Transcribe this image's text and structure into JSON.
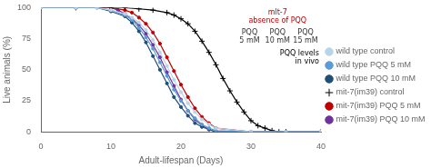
{
  "chart_data": {
    "type": "line",
    "x_label": "Adult-lifespan (Days)",
    "y_label": "Live animals (%)",
    "xlim": [
      0,
      40
    ],
    "ylim": [
      0,
      100
    ],
    "xticks": [
      0,
      10,
      20,
      30,
      40
    ],
    "yticks": [
      0,
      25,
      50,
      75,
      100
    ],
    "grid": false,
    "legend": "right",
    "series": [
      {
        "name": "wild type control",
        "color": "#b8d4e8",
        "marker": "circle",
        "line_style": "solid",
        "x": [
          0,
          5,
          8,
          10,
          12,
          13,
          14,
          15,
          16,
          17,
          18,
          19,
          20,
          21,
          22,
          23,
          24,
          25,
          30,
          35,
          40
        ],
        "values": [
          100,
          100,
          100,
          98,
          95,
          92,
          88,
          82,
          74,
          64,
          53,
          42,
          32,
          23,
          16,
          10,
          6,
          3,
          0,
          0,
          0
        ]
      },
      {
        "name": "wild type PQQ 5 mM",
        "color": "#5b9bd5",
        "marker": "circle",
        "line_style": "solid",
        "x": [
          0,
          5,
          8,
          10,
          12,
          13,
          14,
          15,
          16,
          17,
          18,
          19,
          20,
          21,
          22,
          23,
          24,
          25,
          30,
          35,
          40
        ],
        "values": [
          100,
          100,
          100,
          98,
          94,
          90,
          84,
          76,
          67,
          56,
          45,
          34,
          25,
          17,
          11,
          6,
          3,
          1,
          0,
          0,
          0
        ]
      },
      {
        "name": "wild type PQQ 10 mM",
        "color": "#1f4e79",
        "marker": "circle",
        "line_style": "solid",
        "x": [
          0,
          5,
          8,
          10,
          12,
          13,
          14,
          15,
          16,
          17,
          18,
          19,
          20,
          21,
          22,
          23,
          24,
          25,
          30,
          35,
          40
        ],
        "values": [
          100,
          100,
          100,
          97,
          93,
          88,
          81,
          72,
          61,
          50,
          39,
          28,
          20,
          13,
          7,
          4,
          2,
          0,
          0,
          0,
          0
        ]
      },
      {
        "name": "mit-7(im39) control",
        "color": "#000000",
        "marker": "cross",
        "line_style": "solid",
        "x": [
          0,
          5,
          10,
          12,
          14,
          16,
          18,
          19,
          20,
          21,
          22,
          23,
          24,
          25,
          26,
          27,
          28,
          29,
          30,
          31,
          32,
          33,
          34,
          35,
          40
        ],
        "values": [
          100,
          100,
          100,
          100,
          99,
          98,
          96,
          94,
          91,
          87,
          81,
          73,
          64,
          54,
          43,
          33,
          24,
          16,
          9,
          5,
          3,
          1,
          0,
          0,
          0
        ]
      },
      {
        "name": "mit-7(im39) PQQ 5 mM",
        "color": "#c00000",
        "marker": "circle",
        "line_style": "solid",
        "x": [
          0,
          5,
          10,
          12,
          13,
          14,
          15,
          16,
          17,
          18,
          19,
          20,
          21,
          22,
          23,
          24,
          25,
          30,
          35,
          40
        ],
        "values": [
          100,
          100,
          100,
          98,
          96,
          92,
          87,
          80,
          71,
          60,
          49,
          38,
          28,
          19,
          12,
          7,
          3,
          0,
          0,
          0
        ]
      },
      {
        "name": "mit-7(im39) PQQ 10 mM",
        "color": "#7030a0",
        "marker": "circle",
        "line_style": "solid",
        "x": [
          0,
          5,
          10,
          11,
          12,
          13,
          14,
          15,
          16,
          17,
          18,
          19,
          20,
          21,
          22,
          23,
          24,
          25,
          30,
          35,
          40
        ],
        "values": [
          100,
          100,
          100,
          98,
          95,
          91,
          86,
          79,
          70,
          60,
          48,
          37,
          26,
          17,
          10,
          5,
          2,
          0,
          0,
          0,
          0
        ]
      }
    ],
    "annotations": [
      {
        "text": "mlt-7\nabsence of PQQ",
        "color": "#c00000"
      },
      {
        "text": "PQQ\n5 mM",
        "color": "#333333"
      },
      {
        "text": "PQQ\n10 mM",
        "color": "#333333"
      },
      {
        "text": "PQQ\n15 mM",
        "color": "#333333"
      },
      {
        "text": "PQQ levels\nin vivo",
        "color": "#000000"
      }
    ]
  }
}
